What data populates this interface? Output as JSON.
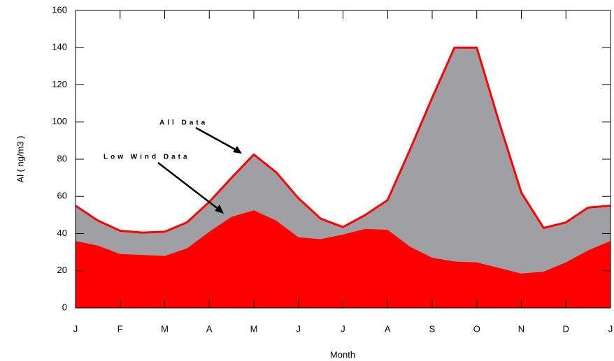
{
  "chart_data": {
    "type": "area",
    "xlabel": "Month",
    "ylabel": "Al ( ng/m3 )",
    "categories": [
      "J",
      null,
      "F",
      null,
      "M",
      null,
      "A",
      null,
      "M",
      null,
      "J",
      null,
      "J",
      null,
      "A",
      null,
      "S",
      null,
      "O",
      null,
      "N",
      null,
      "D",
      null,
      "J"
    ],
    "series": [
      {
        "name": "All Data",
        "color": "#a0a0a4",
        "line_color": "#ff0000",
        "values": [
          55,
          47,
          41.5,
          40.5,
          41,
          46,
          57,
          70,
          82.5,
          73,
          59,
          48,
          43.5,
          50,
          58,
          85,
          113,
          140,
          140,
          100,
          62,
          43,
          46,
          54,
          55
        ]
      },
      {
        "name": "Low Wind Data",
        "color": "#ff0000",
        "values": [
          36,
          33.5,
          29,
          28.5,
          28,
          32,
          41,
          49,
          52.5,
          47,
          38,
          37,
          39.5,
          42.5,
          42,
          33,
          27,
          25,
          24.5,
          21.5,
          18.5,
          19.5,
          24.5,
          31,
          36
        ]
      }
    ],
    "ylim": [
      0,
      160
    ],
    "yticks": [
      0,
      20,
      40,
      60,
      80,
      100,
      120,
      140,
      160
    ]
  }
}
